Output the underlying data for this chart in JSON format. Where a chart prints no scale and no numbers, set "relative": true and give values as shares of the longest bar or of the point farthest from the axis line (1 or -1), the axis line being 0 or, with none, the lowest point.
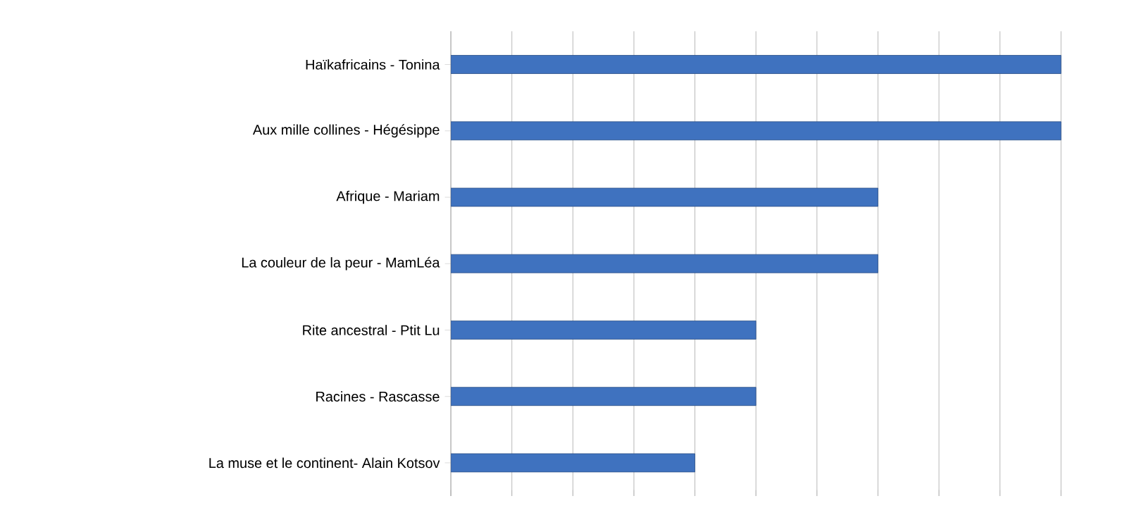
{
  "chart_data": {
    "type": "bar",
    "orientation": "horizontal",
    "relative": true,
    "grid": "x",
    "categories": [
      "Haïkafricains - Tonina",
      "Aux mille collines - Hégésippe",
      "Afrique - Mariam",
      "La couleur de la peur - MamLéa",
      "Rite ancestral - Ptit Lu",
      "Racines - Rascasse",
      "La muse et le continent- Alain Kotsov"
    ],
    "values": [
      1,
      1,
      0.7,
      0.7,
      0.5,
      0.5,
      0.4
    ],
    "color": "#3f72bf"
  }
}
